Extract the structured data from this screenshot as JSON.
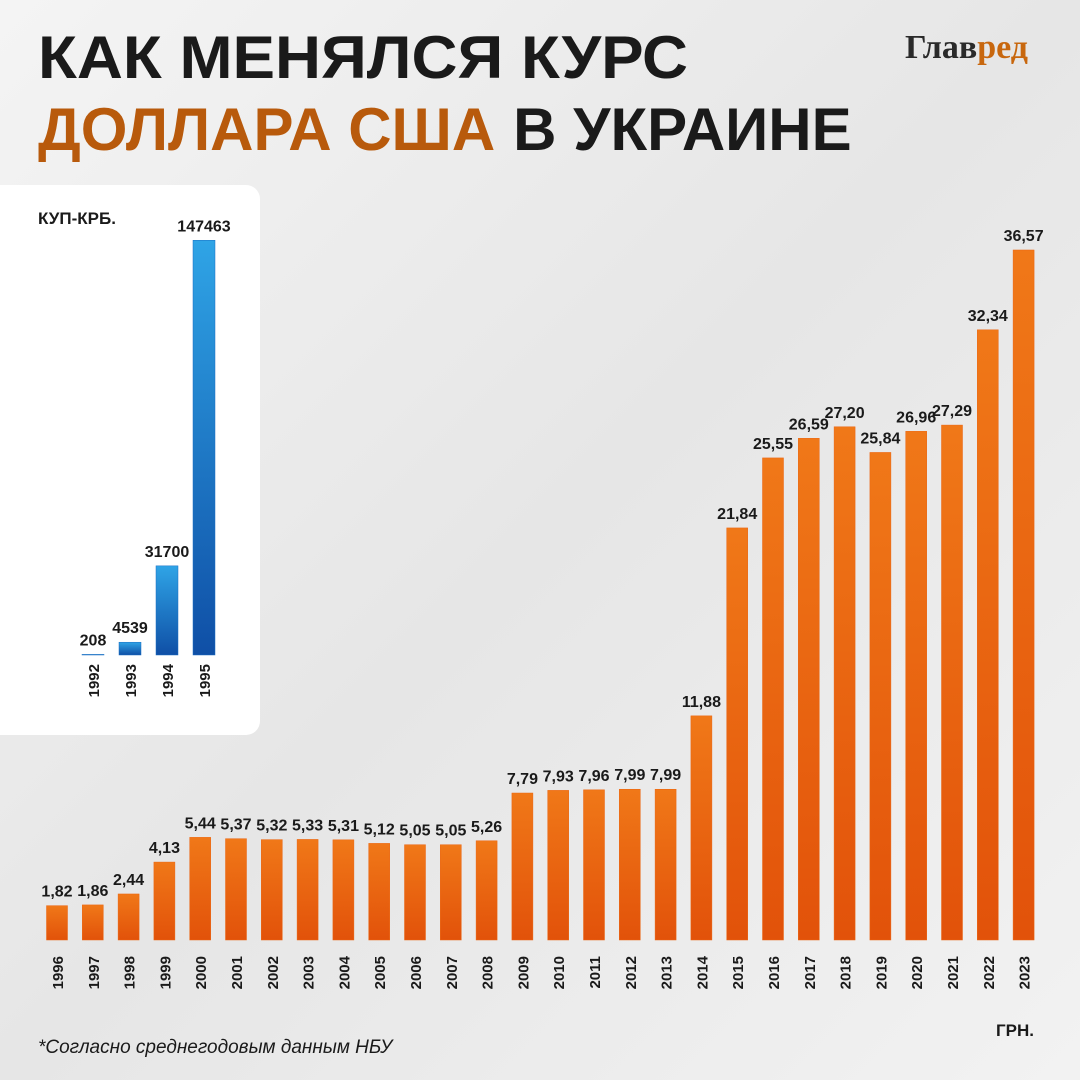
{
  "header": {
    "title_line1": "КАК МЕНЯЛСЯ КУРС",
    "title_highlight": "ДОЛЛАРА США",
    "title_rest": "В УКРАИНЕ",
    "logo_part1": "Глав",
    "logo_part2": "ред"
  },
  "footnote": "*Согласно среднегодовым данным НБУ",
  "chart_data": [
    {
      "type": "bar",
      "unit": "ГРН.",
      "color": "#ec6410",
      "categories": [
        "1996",
        "1997",
        "1998",
        "1999",
        "2000",
        "2001",
        "2002",
        "2003",
        "2004",
        "2005",
        "2006",
        "2007",
        "2008",
        "2009",
        "2010",
        "2011",
        "2012",
        "2013",
        "2014",
        "2015",
        "2016",
        "2017",
        "2018",
        "2019",
        "2020",
        "2021",
        "2022",
        "2023"
      ],
      "values": [
        1.82,
        1.86,
        2.44,
        4.13,
        5.44,
        5.37,
        5.32,
        5.33,
        5.31,
        5.12,
        5.05,
        5.05,
        5.26,
        7.79,
        7.93,
        7.96,
        7.99,
        7.99,
        11.88,
        21.84,
        25.55,
        26.59,
        27.2,
        25.84,
        26.96,
        27.29,
        32.34,
        36.57
      ],
      "value_labels": [
        "1,82",
        "1,86",
        "2,44",
        "4,13",
        "5,44",
        "5,37",
        "5,32",
        "5,33",
        "5,31",
        "5,12",
        "5,05",
        "5,05",
        "5,26",
        "7,79",
        "7,93",
        "7,96",
        "7,99",
        "7,99",
        "11,88",
        "21,84",
        "25,55",
        "26,59",
        "27,20",
        "25,84",
        "26,96",
        "27,29",
        "32,34",
        "36,57"
      ],
      "ylim": [
        0,
        38
      ]
    },
    {
      "type": "bar",
      "unit": "КУП-КРБ.",
      "color": "#1a6fc2",
      "categories": [
        "1992",
        "1993",
        "1994",
        "1995"
      ],
      "values": [
        208,
        4539,
        31700,
        147463
      ],
      "ylim": [
        0,
        160000
      ]
    }
  ]
}
